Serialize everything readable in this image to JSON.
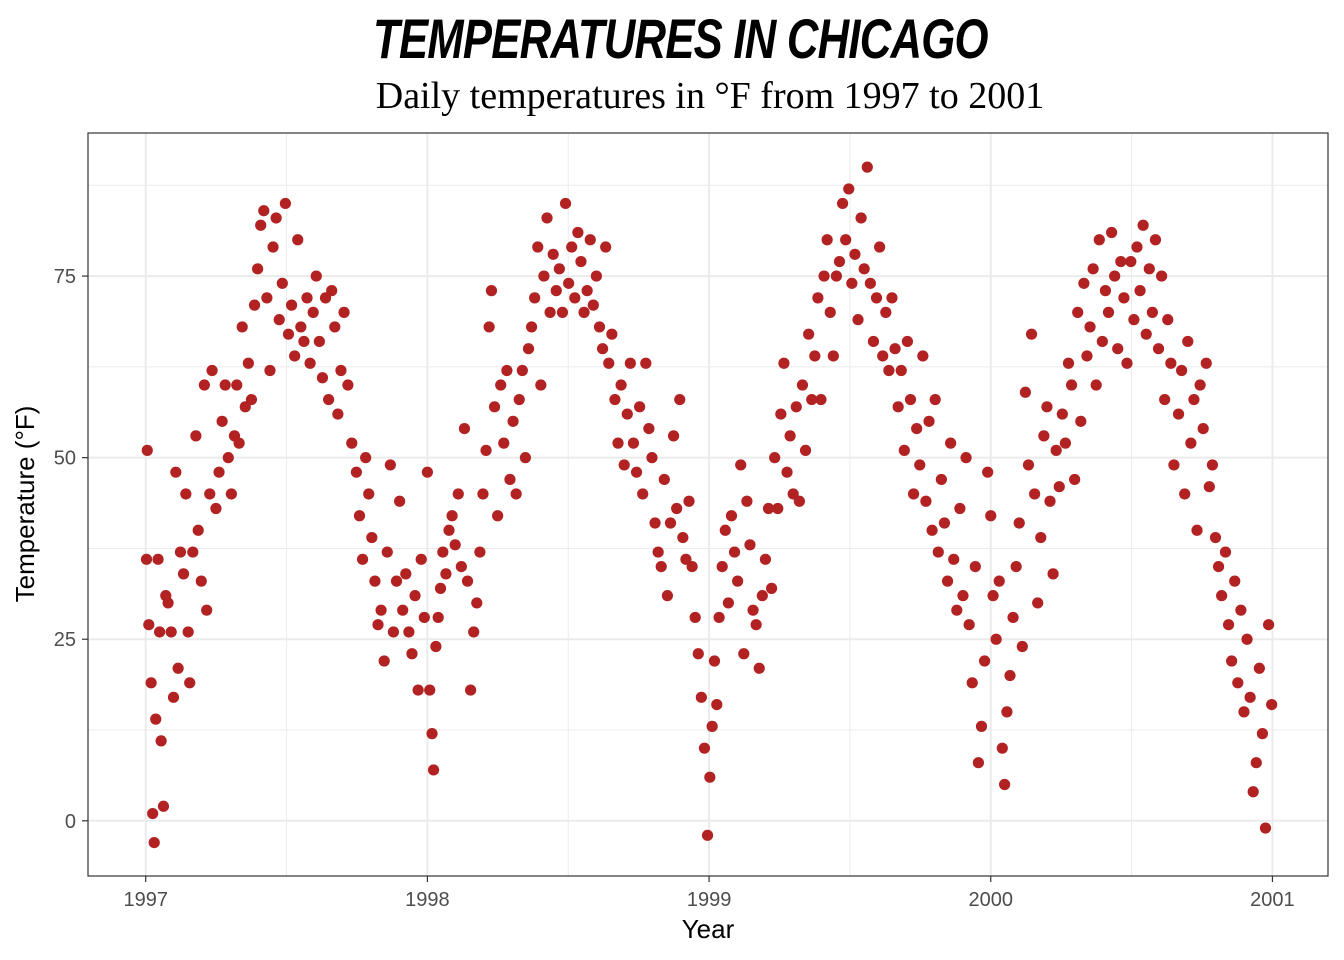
{
  "chart_data": {
    "type": "scatter",
    "title": "TEMPERATURES IN CHICAGO",
    "subtitle": "Daily temperatures in °F from 1997 to 2001",
    "xlabel": "Year",
    "ylabel": "Temperature (°F)",
    "xlim": [
      "1996-10-18",
      "2001-03-14"
    ],
    "ylim": [
      -7.6,
      94.7
    ],
    "x_ticks": [
      "1997",
      "1998",
      "1999",
      "2000",
      "2001"
    ],
    "y_ticks": [
      "0",
      "25",
      "50",
      "75"
    ],
    "grid": true,
    "theme": "bw",
    "point_color": "#B22222",
    "points": [
      [
        "1997-01-02",
        36
      ],
      [
        "1997-01-03",
        51
      ],
      [
        "1997-01-05",
        27
      ],
      [
        "1997-01-08",
        19
      ],
      [
        "1997-01-10",
        1
      ],
      [
        "1997-01-12",
        -3
      ],
      [
        "1997-01-14",
        14
      ],
      [
        "1997-01-17",
        36
      ],
      [
        "1997-01-19",
        26
      ],
      [
        "1997-01-21",
        11
      ],
      [
        "1997-01-24",
        2
      ],
      [
        "1997-01-27",
        31
      ],
      [
        "1997-01-30",
        30
      ],
      [
        "1997-02-03",
        26
      ],
      [
        "1997-02-06",
        17
      ],
      [
        "1997-02-09",
        48
      ],
      [
        "1997-02-12",
        21
      ],
      [
        "1997-02-15",
        37
      ],
      [
        "1997-02-19",
        34
      ],
      [
        "1997-02-22",
        45
      ],
      [
        "1997-02-25",
        26
      ],
      [
        "1997-02-27",
        19
      ],
      [
        "1997-03-03",
        37
      ],
      [
        "1997-03-07",
        53
      ],
      [
        "1997-03-10",
        40
      ],
      [
        "1997-03-14",
        33
      ],
      [
        "1997-03-18",
        60
      ],
      [
        "1997-03-21",
        29
      ],
      [
        "1997-03-25",
        45
      ],
      [
        "1997-03-28",
        62
      ],
      [
        "1997-04-02",
        43
      ],
      [
        "1997-04-06",
        48
      ],
      [
        "1997-04-10",
        55
      ],
      [
        "1997-04-14",
        60
      ],
      [
        "1997-04-18",
        50
      ],
      [
        "1997-04-22",
        45
      ],
      [
        "1997-04-26",
        53
      ],
      [
        "1997-04-29",
        60
      ],
      [
        "1997-05-02",
        52
      ],
      [
        "1997-05-06",
        68
      ],
      [
        "1997-05-10",
        57
      ],
      [
        "1997-05-14",
        63
      ],
      [
        "1997-05-18",
        58
      ],
      [
        "1997-05-22",
        71
      ],
      [
        "1997-05-26",
        76
      ],
      [
        "1997-05-30",
        82
      ],
      [
        "1997-06-03",
        84
      ],
      [
        "1997-06-07",
        72
      ],
      [
        "1997-06-11",
        62
      ],
      [
        "1997-06-15",
        79
      ],
      [
        "1997-06-19",
        83
      ],
      [
        "1997-06-23",
        69
      ],
      [
        "1997-06-27",
        74
      ],
      [
        "1997-07-01",
        85
      ],
      [
        "1997-07-05",
        67
      ],
      [
        "1997-07-09",
        71
      ],
      [
        "1997-07-13",
        64
      ],
      [
        "1997-07-17",
        80
      ],
      [
        "1997-07-21",
        68
      ],
      [
        "1997-07-25",
        66
      ],
      [
        "1997-07-29",
        72
      ],
      [
        "1997-08-02",
        63
      ],
      [
        "1997-08-06",
        70
      ],
      [
        "1997-08-10",
        75
      ],
      [
        "1997-08-14",
        66
      ],
      [
        "1997-08-18",
        61
      ],
      [
        "1997-08-22",
        72
      ],
      [
        "1997-08-26",
        58
      ],
      [
        "1997-08-30",
        73
      ],
      [
        "1997-09-03",
        68
      ],
      [
        "1997-09-07",
        56
      ],
      [
        "1997-09-11",
        62
      ],
      [
        "1997-09-15",
        70
      ],
      [
        "1997-09-20",
        60
      ],
      [
        "1997-09-25",
        52
      ],
      [
        "1997-10-01",
        48
      ],
      [
        "1997-10-05",
        42
      ],
      [
        "1997-10-09",
        36
      ],
      [
        "1997-10-13",
        50
      ],
      [
        "1997-10-17",
        45
      ],
      [
        "1997-10-21",
        39
      ],
      [
        "1997-10-25",
        33
      ],
      [
        "1997-10-29",
        27
      ],
      [
        "1997-11-02",
        29
      ],
      [
        "1997-11-06",
        22
      ],
      [
        "1997-11-10",
        37
      ],
      [
        "1997-11-14",
        49
      ],
      [
        "1997-11-18",
        26
      ],
      [
        "1997-11-22",
        33
      ],
      [
        "1997-11-26",
        44
      ],
      [
        "1997-11-30",
        29
      ],
      [
        "1997-12-04",
        34
      ],
      [
        "1997-12-08",
        26
      ],
      [
        "1997-12-12",
        23
      ],
      [
        "1997-12-16",
        31
      ],
      [
        "1997-12-20",
        18
      ],
      [
        "1997-12-24",
        36
      ],
      [
        "1997-12-28",
        28
      ],
      [
        "1998-01-01",
        48
      ],
      [
        "1998-01-04",
        18
      ],
      [
        "1998-01-07",
        12
      ],
      [
        "1998-01-09",
        7
      ],
      [
        "1998-01-12",
        24
      ],
      [
        "1998-01-15",
        28
      ],
      [
        "1998-01-18",
        32
      ],
      [
        "1998-01-21",
        37
      ],
      [
        "1998-01-25",
        34
      ],
      [
        "1998-01-29",
        40
      ],
      [
        "1998-02-02",
        42
      ],
      [
        "1998-02-06",
        38
      ],
      [
        "1998-02-10",
        45
      ],
      [
        "1998-02-14",
        35
      ],
      [
        "1998-02-18",
        54
      ],
      [
        "1998-02-22",
        33
      ],
      [
        "1998-02-26",
        18
      ],
      [
        "1998-03-02",
        26
      ],
      [
        "1998-03-06",
        30
      ],
      [
        "1998-03-10",
        37
      ],
      [
        "1998-03-14",
        45
      ],
      [
        "1998-03-18",
        51
      ],
      [
        "1998-03-22",
        68
      ],
      [
        "1998-03-25",
        73
      ],
      [
        "1998-03-29",
        57
      ],
      [
        "1998-04-02",
        42
      ],
      [
        "1998-04-06",
        60
      ],
      [
        "1998-04-10",
        52
      ],
      [
        "1998-04-14",
        62
      ],
      [
        "1998-04-18",
        47
      ],
      [
        "1998-04-22",
        55
      ],
      [
        "1998-04-26",
        45
      ],
      [
        "1998-04-30",
        58
      ],
      [
        "1998-05-04",
        62
      ],
      [
        "1998-05-08",
        50
      ],
      [
        "1998-05-12",
        65
      ],
      [
        "1998-05-16",
        68
      ],
      [
        "1998-05-20",
        72
      ],
      [
        "1998-05-24",
        79
      ],
      [
        "1998-05-28",
        60
      ],
      [
        "1998-06-01",
        75
      ],
      [
        "1998-06-05",
        83
      ],
      [
        "1998-06-09",
        70
      ],
      [
        "1998-06-13",
        78
      ],
      [
        "1998-06-17",
        73
      ],
      [
        "1998-06-21",
        76
      ],
      [
        "1998-06-25",
        70
      ],
      [
        "1998-06-29",
        85
      ],
      [
        "1998-07-03",
        74
      ],
      [
        "1998-07-07",
        79
      ],
      [
        "1998-07-11",
        72
      ],
      [
        "1998-07-15",
        81
      ],
      [
        "1998-07-19",
        77
      ],
      [
        "1998-07-23",
        70
      ],
      [
        "1998-07-27",
        73
      ],
      [
        "1998-07-31",
        80
      ],
      [
        "1998-08-04",
        71
      ],
      [
        "1998-08-08",
        75
      ],
      [
        "1998-08-12",
        68
      ],
      [
        "1998-08-16",
        65
      ],
      [
        "1998-08-20",
        79
      ],
      [
        "1998-08-24",
        63
      ],
      [
        "1998-08-28",
        67
      ],
      [
        "1998-09-01",
        58
      ],
      [
        "1998-09-05",
        52
      ],
      [
        "1998-09-09",
        60
      ],
      [
        "1998-09-13",
        49
      ],
      [
        "1998-09-17",
        56
      ],
      [
        "1998-09-21",
        63
      ],
      [
        "1998-09-25",
        52
      ],
      [
        "1998-09-29",
        48
      ],
      [
        "1998-10-03",
        57
      ],
      [
        "1998-10-07",
        45
      ],
      [
        "1998-10-11",
        63
      ],
      [
        "1998-10-15",
        54
      ],
      [
        "1998-10-19",
        50
      ],
      [
        "1998-10-23",
        41
      ],
      [
        "1998-10-27",
        37
      ],
      [
        "1998-10-31",
        35
      ],
      [
        "1998-11-04",
        47
      ],
      [
        "1998-11-08",
        31
      ],
      [
        "1998-11-12",
        41
      ],
      [
        "1998-11-16",
        53
      ],
      [
        "1998-11-20",
        43
      ],
      [
        "1998-11-24",
        58
      ],
      [
        "1998-11-28",
        39
      ],
      [
        "1998-12-02",
        36
      ],
      [
        "1998-12-06",
        44
      ],
      [
        "1998-12-10",
        35
      ],
      [
        "1998-12-14",
        28
      ],
      [
        "1998-12-18",
        23
      ],
      [
        "1998-12-22",
        17
      ],
      [
        "1998-12-26",
        10
      ],
      [
        "1998-12-30",
        -2
      ],
      [
        "1999-01-02",
        6
      ],
      [
        "1999-01-05",
        13
      ],
      [
        "1999-01-08",
        22
      ],
      [
        "1999-01-11",
        16
      ],
      [
        "1999-01-14",
        28
      ],
      [
        "1999-01-18",
        35
      ],
      [
        "1999-01-22",
        40
      ],
      [
        "1999-01-26",
        30
      ],
      [
        "1999-01-30",
        42
      ],
      [
        "1999-02-03",
        37
      ],
      [
        "1999-02-07",
        33
      ],
      [
        "1999-02-11",
        49
      ],
      [
        "1999-02-15",
        23
      ],
      [
        "1999-02-19",
        44
      ],
      [
        "1999-02-23",
        38
      ],
      [
        "1999-02-27",
        29
      ],
      [
        "1999-03-03",
        27
      ],
      [
        "1999-03-07",
        21
      ],
      [
        "1999-03-11",
        31
      ],
      [
        "1999-03-15",
        36
      ],
      [
        "1999-03-19",
        43
      ],
      [
        "1999-03-23",
        32
      ],
      [
        "1999-03-27",
        50
      ],
      [
        "1999-03-31",
        43
      ],
      [
        "1999-04-04",
        56
      ],
      [
        "1999-04-08",
        63
      ],
      [
        "1999-04-12",
        48
      ],
      [
        "1999-04-16",
        53
      ],
      [
        "1999-04-20",
        45
      ],
      [
        "1999-04-24",
        57
      ],
      [
        "1999-04-28",
        44
      ],
      [
        "1999-05-02",
        60
      ],
      [
        "1999-05-06",
        51
      ],
      [
        "1999-05-10",
        67
      ],
      [
        "1999-05-14",
        58
      ],
      [
        "1999-05-18",
        64
      ],
      [
        "1999-05-22",
        72
      ],
      [
        "1999-05-26",
        58
      ],
      [
        "1999-05-30",
        75
      ],
      [
        "1999-06-03",
        80
      ],
      [
        "1999-06-07",
        70
      ],
      [
        "1999-06-11",
        64
      ],
      [
        "1999-06-15",
        75
      ],
      [
        "1999-06-19",
        77
      ],
      [
        "1999-06-23",
        85
      ],
      [
        "1999-06-27",
        80
      ],
      [
        "1999-07-01",
        87
      ],
      [
        "1999-07-05",
        74
      ],
      [
        "1999-07-09",
        78
      ],
      [
        "1999-07-13",
        69
      ],
      [
        "1999-07-17",
        83
      ],
      [
        "1999-07-21",
        76
      ],
      [
        "1999-07-25",
        90
      ],
      [
        "1999-07-29",
        74
      ],
      [
        "1999-08-02",
        66
      ],
      [
        "1999-08-06",
        72
      ],
      [
        "1999-08-10",
        79
      ],
      [
        "1999-08-14",
        64
      ],
      [
        "1999-08-18",
        70
      ],
      [
        "1999-08-22",
        62
      ],
      [
        "1999-08-26",
        72
      ],
      [
        "1999-08-30",
        65
      ],
      [
        "1999-09-03",
        57
      ],
      [
        "1999-09-07",
        62
      ],
      [
        "1999-09-11",
        51
      ],
      [
        "1999-09-15",
        66
      ],
      [
        "1999-09-19",
        58
      ],
      [
        "1999-09-23",
        45
      ],
      [
        "1999-09-27",
        54
      ],
      [
        "1999-10-01",
        49
      ],
      [
        "1999-10-05",
        64
      ],
      [
        "1999-10-09",
        44
      ],
      [
        "1999-10-13",
        55
      ],
      [
        "1999-10-17",
        40
      ],
      [
        "1999-10-21",
        58
      ],
      [
        "1999-10-25",
        37
      ],
      [
        "1999-10-29",
        47
      ],
      [
        "1999-11-02",
        41
      ],
      [
        "1999-11-06",
        33
      ],
      [
        "1999-11-10",
        52
      ],
      [
        "1999-11-14",
        36
      ],
      [
        "1999-11-18",
        29
      ],
      [
        "1999-11-22",
        43
      ],
      [
        "1999-11-26",
        31
      ],
      [
        "1999-11-30",
        50
      ],
      [
        "1999-12-04",
        27
      ],
      [
        "1999-12-08",
        19
      ],
      [
        "1999-12-12",
        35
      ],
      [
        "1999-12-16",
        8
      ],
      [
        "1999-12-20",
        13
      ],
      [
        "1999-12-24",
        22
      ],
      [
        "1999-12-28",
        48
      ],
      [
        "2000-01-01",
        42
      ],
      [
        "2000-01-04",
        31
      ],
      [
        "2000-01-08",
        25
      ],
      [
        "2000-01-12",
        33
      ],
      [
        "2000-01-16",
        10
      ],
      [
        "2000-01-19",
        5
      ],
      [
        "2000-01-22",
        15
      ],
      [
        "2000-01-26",
        20
      ],
      [
        "2000-01-30",
        28
      ],
      [
        "2000-02-03",
        35
      ],
      [
        "2000-02-07",
        41
      ],
      [
        "2000-02-11",
        24
      ],
      [
        "2000-02-15",
        59
      ],
      [
        "2000-02-19",
        49
      ],
      [
        "2000-02-23",
        67
      ],
      [
        "2000-02-27",
        45
      ],
      [
        "2000-03-02",
        30
      ],
      [
        "2000-03-06",
        39
      ],
      [
        "2000-03-10",
        53
      ],
      [
        "2000-03-14",
        57
      ],
      [
        "2000-03-18",
        44
      ],
      [
        "2000-03-22",
        34
      ],
      [
        "2000-03-26",
        51
      ],
      [
        "2000-03-30",
        46
      ],
      [
        "2000-04-03",
        56
      ],
      [
        "2000-04-07",
        52
      ],
      [
        "2000-04-11",
        63
      ],
      [
        "2000-04-15",
        60
      ],
      [
        "2000-04-19",
        47
      ],
      [
        "2000-04-23",
        70
      ],
      [
        "2000-04-27",
        55
      ],
      [
        "2000-05-01",
        74
      ],
      [
        "2000-05-05",
        64
      ],
      [
        "2000-05-09",
        68
      ],
      [
        "2000-05-13",
        76
      ],
      [
        "2000-05-17",
        60
      ],
      [
        "2000-05-21",
        80
      ],
      [
        "2000-05-25",
        66
      ],
      [
        "2000-05-29",
        73
      ],
      [
        "2000-06-02",
        70
      ],
      [
        "2000-06-06",
        81
      ],
      [
        "2000-06-10",
        75
      ],
      [
        "2000-06-14",
        65
      ],
      [
        "2000-06-18",
        77
      ],
      [
        "2000-06-22",
        72
      ],
      [
        "2000-06-26",
        63
      ],
      [
        "2000-07-01",
        77
      ],
      [
        "2000-07-05",
        69
      ],
      [
        "2000-07-09",
        79
      ],
      [
        "2000-07-13",
        73
      ],
      [
        "2000-07-17",
        82
      ],
      [
        "2000-07-21",
        67
      ],
      [
        "2000-07-25",
        76
      ],
      [
        "2000-07-29",
        70
      ],
      [
        "2000-08-02",
        80
      ],
      [
        "2000-08-06",
        65
      ],
      [
        "2000-08-10",
        75
      ],
      [
        "2000-08-14",
        58
      ],
      [
        "2000-08-18",
        69
      ],
      [
        "2000-08-22",
        63
      ],
      [
        "2000-08-26",
        49
      ],
      [
        "2000-09-01",
        56
      ],
      [
        "2000-09-05",
        62
      ],
      [
        "2000-09-09",
        45
      ],
      [
        "2000-09-13",
        66
      ],
      [
        "2000-09-17",
        52
      ],
      [
        "2000-09-21",
        58
      ],
      [
        "2000-09-25",
        40
      ],
      [
        "2000-09-29",
        60
      ],
      [
        "2000-10-03",
        54
      ],
      [
        "2000-10-07",
        63
      ],
      [
        "2000-10-11",
        46
      ],
      [
        "2000-10-15",
        49
      ],
      [
        "2000-10-19",
        39
      ],
      [
        "2000-10-23",
        35
      ],
      [
        "2000-10-27",
        31
      ],
      [
        "2000-11-01",
        37
      ],
      [
        "2000-11-05",
        27
      ],
      [
        "2000-11-09",
        22
      ],
      [
        "2000-11-13",
        33
      ],
      [
        "2000-11-17",
        19
      ],
      [
        "2000-11-21",
        29
      ],
      [
        "2000-11-25",
        15
      ],
      [
        "2000-11-29",
        25
      ],
      [
        "2000-12-03",
        17
      ],
      [
        "2000-12-07",
        4
      ],
      [
        "2000-12-11",
        8
      ],
      [
        "2000-12-15",
        21
      ],
      [
        "2000-12-19",
        12
      ],
      [
        "2000-12-23",
        -1
      ],
      [
        "2000-12-27",
        27
      ],
      [
        "2000-12-31",
        16
      ]
    ]
  }
}
